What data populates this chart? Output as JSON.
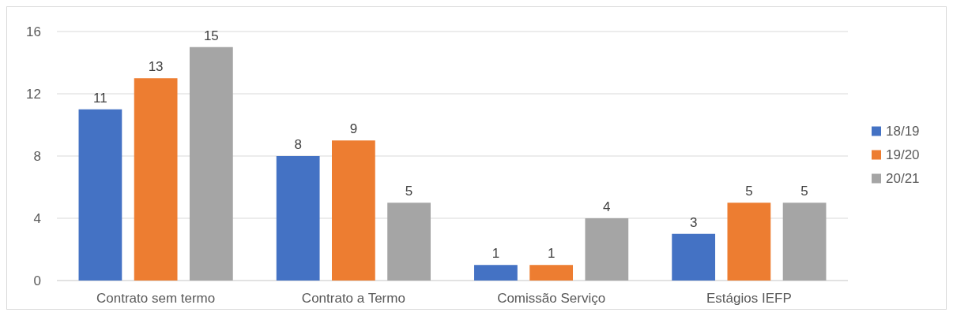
{
  "chart_data": {
    "type": "bar",
    "categories": [
      "Contrato sem termo",
      "Contrato a Termo",
      "Comissão Serviço",
      "Estágios IEFP"
    ],
    "series": [
      {
        "name": "18/19",
        "color": "#4472c4",
        "values": [
          11,
          8,
          1,
          3
        ]
      },
      {
        "name": "19/20",
        "color": "#ed7d31",
        "values": [
          13,
          9,
          1,
          5
        ]
      },
      {
        "name": "20/21",
        "color": "#a5a5a5",
        "values": [
          15,
          5,
          4,
          5
        ]
      }
    ],
    "ylim": [
      0,
      16
    ],
    "yticks": [
      0,
      4,
      8,
      12,
      16
    ],
    "grid": "y",
    "legend": "right",
    "data_labels": true
  }
}
